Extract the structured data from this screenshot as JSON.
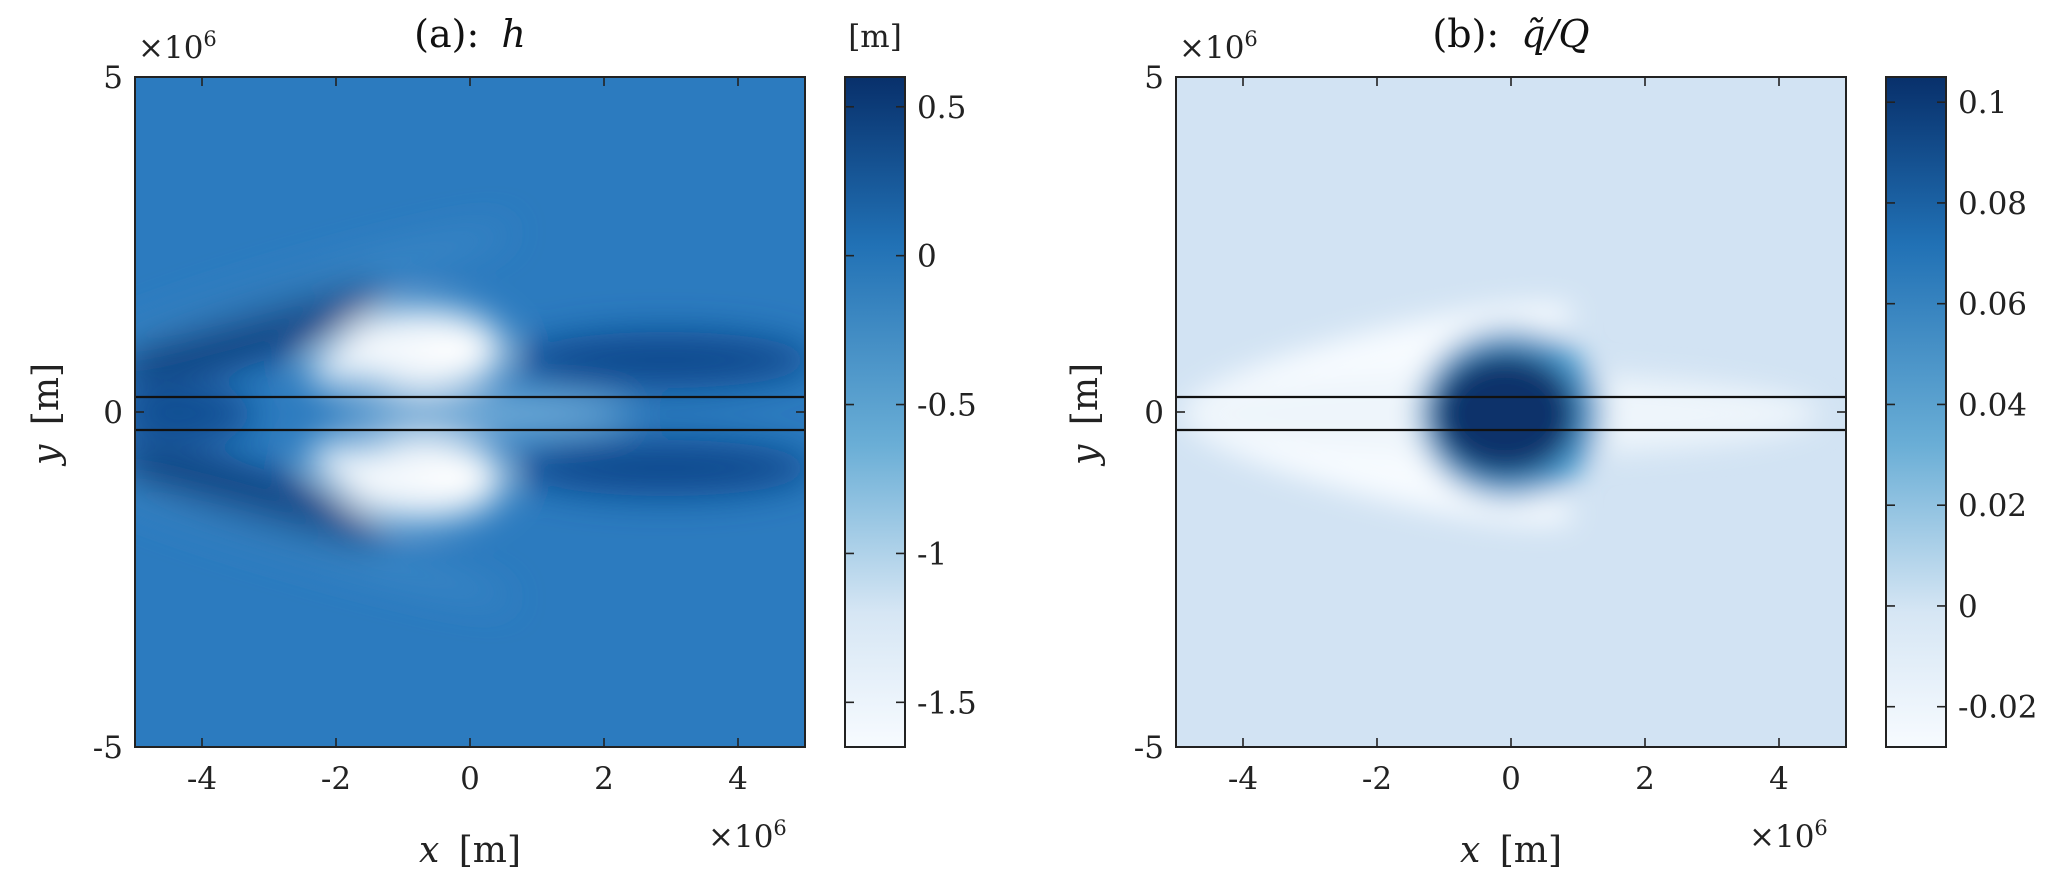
{
  "chart_data": [
    {
      "type": "heatmap",
      "title_prefix": "(a):",
      "title_symbol": "h",
      "xlabel_var": "x",
      "xlabel_unit": "[m]",
      "ylabel_var": "y",
      "ylabel_unit": "[m]",
      "xlim": [
        -5000000,
        5000000
      ],
      "ylim": [
        -5000000,
        5000000
      ],
      "x_ticks": [
        -4,
        -2,
        0,
        2,
        4
      ],
      "x_tick_labels": [
        "-4",
        "-2",
        "0",
        "2",
        "4"
      ],
      "y_ticks": [
        -5,
        0,
        5
      ],
      "y_tick_labels": [
        "-5",
        "0",
        "5"
      ],
      "x_multiplier": "×10",
      "x_multiplier_exp": "6",
      "y_multiplier": "×10",
      "y_multiplier_exp": "6",
      "horizontal_lines_y": [
        -0.25,
        0.25
      ],
      "colorbar_unit": "[m]",
      "colorbar_range": [
        -1.65,
        0.6
      ],
      "colorbar_ticks": [
        0.5,
        0,
        -0.5,
        -1,
        -1.5
      ],
      "colorbar_tick_labels": [
        "0.5",
        "0",
        "-0.5",
        "-1",
        "-1.5"
      ],
      "background_value": 0.0,
      "features": [
        {
          "x": -0.4,
          "y": 0.9,
          "value": -1.6
        },
        {
          "x": -0.4,
          "y": -0.9,
          "value": -1.6
        },
        {
          "x": -2.0,
          "y": 1.4,
          "value": 0.55
        },
        {
          "x": -2.0,
          "y": -1.4,
          "value": 0.55
        },
        {
          "x": 3.0,
          "y": 0.8,
          "value": 0.5
        },
        {
          "x": 3.0,
          "y": -0.8,
          "value": 0.5
        },
        {
          "x": 0.0,
          "y": 0.0,
          "value": -0.6
        }
      ]
    },
    {
      "type": "heatmap",
      "title_prefix": "(b):",
      "title_symbol": "q̃/Q",
      "xlabel_var": "x",
      "xlabel_unit": "[m]",
      "ylabel_var": "y",
      "ylabel_unit": "[m]",
      "xlim": [
        -5000000,
        5000000
      ],
      "ylim": [
        -5000000,
        5000000
      ],
      "x_ticks": [
        -4,
        -2,
        0,
        2,
        4
      ],
      "x_tick_labels": [
        "-4",
        "-2",
        "0",
        "2",
        "4"
      ],
      "y_ticks": [
        -5,
        0,
        5
      ],
      "y_tick_labels": [
        "-5",
        "0",
        "5"
      ],
      "x_multiplier": "×10",
      "x_multiplier_exp": "6",
      "y_multiplier": "×10",
      "y_multiplier_exp": "6",
      "horizontal_lines_y": [
        -0.25,
        0.25
      ],
      "colorbar_range": [
        -0.028,
        0.105
      ],
      "colorbar_ticks": [
        0.1,
        0.08,
        0.06,
        0.04,
        0.02,
        0,
        -0.02
      ],
      "colorbar_tick_labels": [
        "0.1",
        "0.08",
        "0.06",
        "0.04",
        "0.02",
        "0",
        "-0.02"
      ],
      "background_value": 0.0,
      "features": [
        {
          "x": 0.0,
          "y": 0.0,
          "value": 0.105
        },
        {
          "x": -0.8,
          "y": 0.8,
          "value": -0.025
        },
        {
          "x": -0.8,
          "y": -0.8,
          "value": -0.025
        }
      ]
    }
  ]
}
